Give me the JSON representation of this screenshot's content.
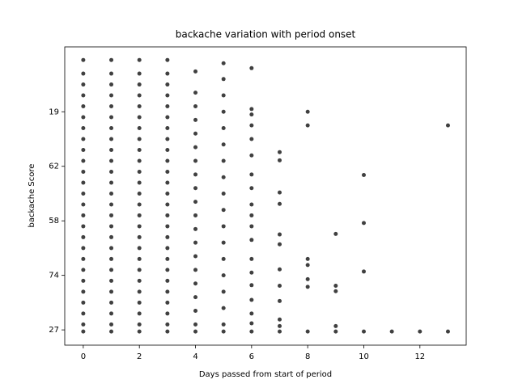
{
  "chart_data": {
    "type": "scatter",
    "title": "backache variation with period onset",
    "xlabel": "Days passed from start of period",
    "ylabel": "backache Score",
    "color": "#000000",
    "alpha": 0.75,
    "x": [
      0,
      0,
      0,
      0,
      0,
      0,
      0,
      0,
      0,
      0,
      0,
      0,
      0,
      0,
      0,
      0,
      0,
      0,
      0,
      0,
      0,
      0,
      0,
      0,
      0,
      0,
      1,
      1,
      1,
      1,
      1,
      1,
      1,
      1,
      1,
      1,
      1,
      1,
      1,
      1,
      1,
      1,
      1,
      1,
      1,
      1,
      1,
      1,
      1,
      1,
      1,
      1,
      2,
      2,
      2,
      2,
      2,
      2,
      2,
      2,
      2,
      2,
      2,
      2,
      2,
      2,
      2,
      2,
      2,
      2,
      2,
      2,
      2,
      2,
      2,
      2,
      2,
      2,
      3,
      3,
      3,
      3,
      3,
      3,
      3,
      3,
      3,
      3,
      3,
      3,
      3,
      3,
      3,
      3,
      3,
      3,
      3,
      3,
      3,
      3,
      3,
      3,
      3,
      3,
      4,
      4,
      4,
      4,
      4,
      4,
      4,
      4,
      4,
      4,
      4,
      4,
      4,
      4,
      4,
      4,
      4,
      4,
      4,
      4,
      5,
      5,
      5,
      5,
      5,
      5,
      5,
      5,
      5,
      5,
      5,
      5,
      5,
      5,
      5,
      5,
      5,
      5,
      6,
      6,
      6,
      6,
      6,
      6,
      6,
      6,
      6,
      6,
      6,
      6,
      6,
      6,
      6,
      6,
      6,
      6,
      6,
      7,
      7,
      7,
      7,
      7,
      7,
      7,
      7,
      7,
      7,
      7,
      7,
      8,
      8,
      8,
      8,
      8,
      8,
      8,
      9,
      9,
      9,
      9,
      9,
      10,
      10,
      10,
      10,
      11,
      12,
      13,
      13
    ],
    "values": [
      -0.03,
      0.1,
      0.3,
      0.5,
      0.7,
      0.9,
      1.1,
      1.3,
      1.5,
      1.7,
      1.9,
      2.1,
      2.3,
      2.5,
      2.7,
      2.9,
      3.1,
      3.3,
      3.5,
      3.7,
      3.9,
      4.1,
      4.3,
      4.5,
      4.7,
      4.95,
      -0.03,
      0.1,
      0.3,
      0.5,
      0.7,
      0.9,
      1.1,
      1.3,
      1.5,
      1.7,
      1.9,
      2.1,
      2.3,
      2.5,
      2.7,
      2.9,
      3.1,
      3.3,
      3.5,
      3.7,
      3.9,
      4.1,
      4.3,
      4.5,
      4.7,
      4.95,
      -0.03,
      0.1,
      0.3,
      0.5,
      0.7,
      0.9,
      1.1,
      1.3,
      1.5,
      1.7,
      1.9,
      2.1,
      2.3,
      2.5,
      2.7,
      2.9,
      3.1,
      3.3,
      3.5,
      3.7,
      3.9,
      4.1,
      4.3,
      4.5,
      4.7,
      4.95,
      -0.03,
      0.1,
      0.3,
      0.5,
      0.7,
      0.9,
      1.1,
      1.3,
      1.5,
      1.7,
      1.9,
      2.1,
      2.3,
      2.5,
      2.7,
      2.9,
      3.1,
      3.3,
      3.5,
      3.7,
      3.9,
      4.1,
      4.3,
      4.5,
      4.7,
      4.95,
      -0.03,
      0.1,
      0.35,
      0.6,
      0.85,
      1.1,
      1.35,
      1.6,
      1.85,
      2.1,
      2.35,
      2.6,
      2.85,
      3.1,
      3.35,
      3.6,
      3.85,
      4.1,
      4.35,
      4.74,
      -0.03,
      0.1,
      0.4,
      0.7,
      1.0,
      1.3,
      1.6,
      1.9,
      2.2,
      2.5,
      2.8,
      3.1,
      3.4,
      3.7,
      4.0,
      4.3,
      4.6,
      4.89,
      -0.03,
      0.12,
      0.3,
      0.55,
      0.82,
      1.05,
      1.3,
      1.65,
      1.9,
      2.1,
      2.3,
      2.6,
      2.85,
      3.2,
      3.5,
      3.75,
      3.95,
      4.05,
      4.8,
      3.26,
      3.11,
      2.52,
      2.31,
      1.75,
      1.57,
      1.11,
      0.81,
      0.53,
      0.19,
      0.07,
      -0.03,
      4.0,
      3.75,
      1.3,
      1.19,
      0.93,
      0.79,
      -0.03,
      1.76,
      0.81,
      0.71,
      0.07,
      -0.03,
      2.84,
      1.96,
      1.07,
      -0.03,
      -0.03,
      -0.03,
      3.75,
      -0.03
    ],
    "xlim": [
      -0.66,
      13.65
    ],
    "xticks": [
      0,
      2,
      4,
      6,
      8,
      10,
      12
    ],
    "ylim": [
      -0.28,
      5.19
    ],
    "yticks": [
      {
        "value": 0,
        "label": "27"
      },
      {
        "value": 1,
        "label": "74"
      },
      {
        "value": 2,
        "label": "58"
      },
      {
        "value": 3,
        "label": "62"
      },
      {
        "value": 4,
        "label": "19"
      }
    ]
  }
}
